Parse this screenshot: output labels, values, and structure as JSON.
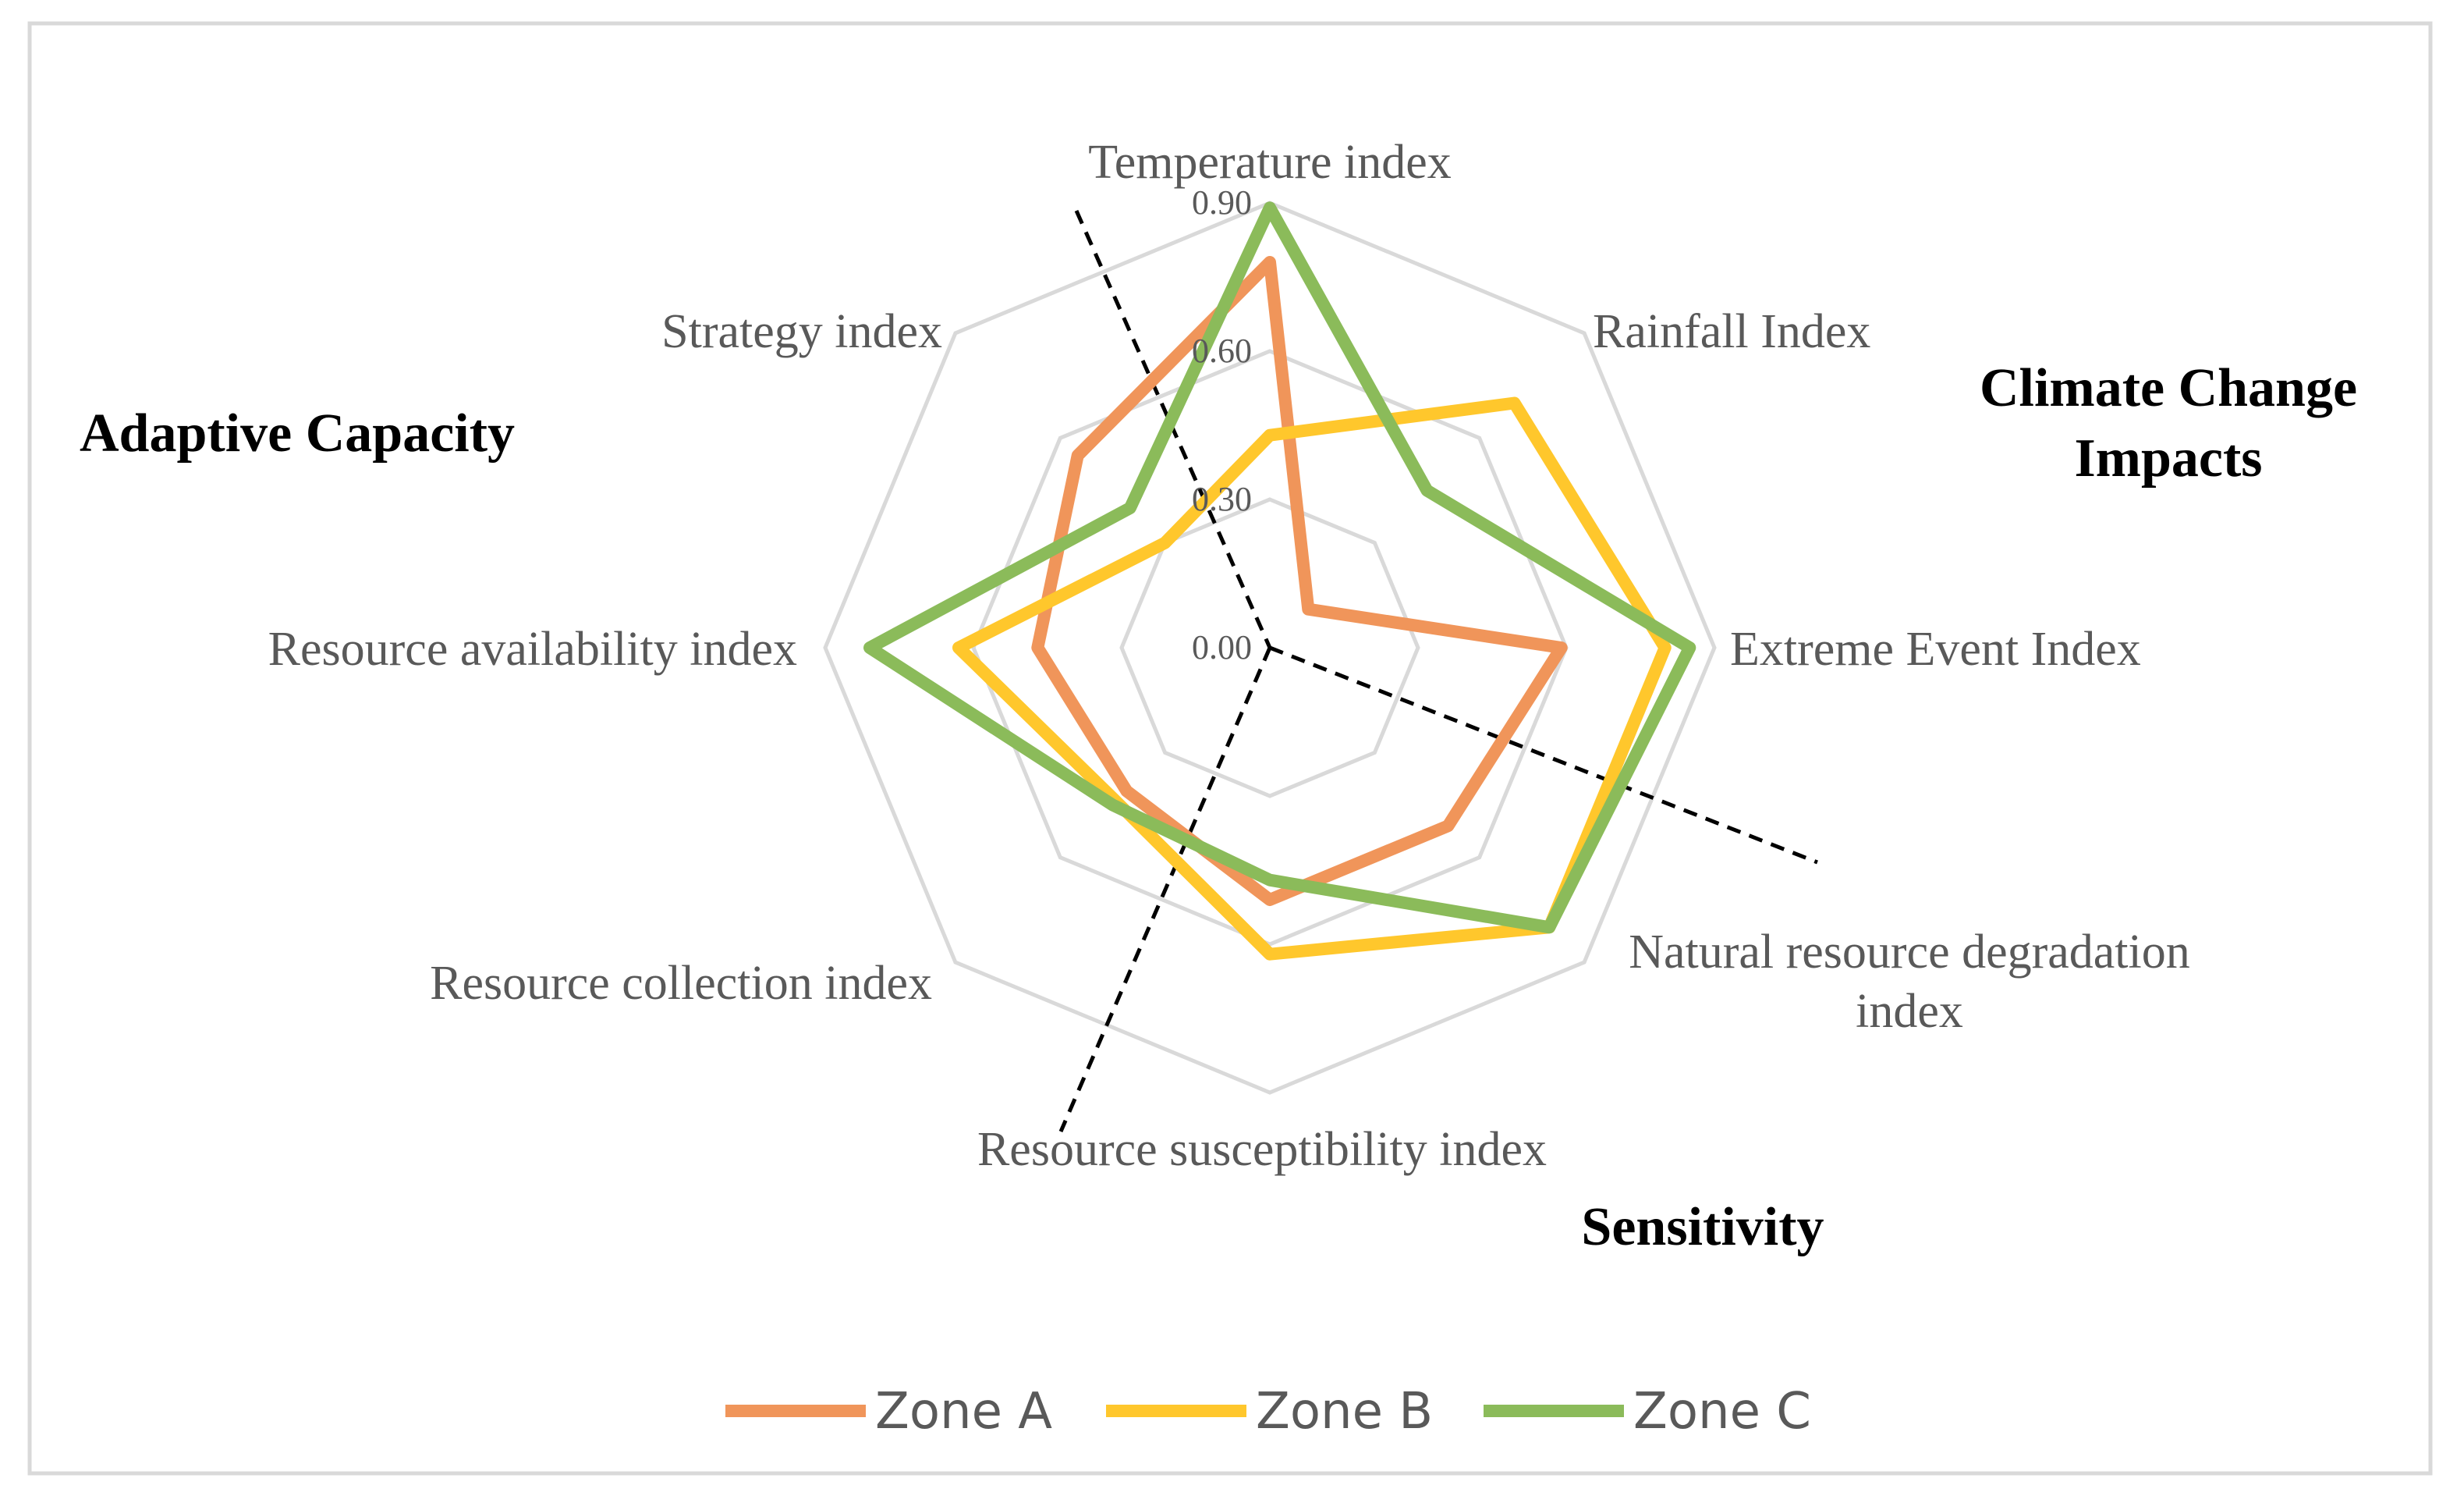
{
  "chart_data": {
    "type": "radar",
    "title": "",
    "axes": [
      "Temperature index",
      "Rainfall Index",
      "Extreme Event Index",
      "Natural resource degradation index",
      "Resource susceptibility index",
      "Resource collection index",
      "Resource availability index",
      "Strategy index"
    ],
    "axis_label_lines": [
      [
        "Temperature index"
      ],
      [
        "Rainfall Index"
      ],
      [
        "Extreme Event Index"
      ],
      [
        "Natural resource degradation",
        "index"
      ],
      [
        "Resource susceptibility index"
      ],
      [
        "Resource collection index"
      ],
      [
        "Resource availability index"
      ],
      [
        "Strategy index"
      ]
    ],
    "rlim": [
      0,
      0.9
    ],
    "ticks": [
      0.0,
      0.3,
      0.6,
      0.9
    ],
    "tick_labels": [
      "0.00",
      "0.30",
      "0.60",
      "0.90"
    ],
    "grid": true,
    "series": [
      {
        "name": "Zone A",
        "color": "#F0955A",
        "values": [
          0.78,
          0.11,
          0.59,
          0.51,
          0.51,
          0.41,
          0.47,
          0.55
        ]
      },
      {
        "name": "Zone B",
        "color": "#FFC72C",
        "values": [
          0.43,
          0.7,
          0.8,
          0.8,
          0.62,
          0.44,
          0.63,
          0.3
        ]
      },
      {
        "name": "Zone C",
        "color": "#8BBB5A",
        "values": [
          0.89,
          0.45,
          0.85,
          0.8,
          0.47,
          0.45,
          0.81,
          0.4
        ]
      }
    ],
    "group_labels": [
      {
        "id": "adaptive-capacity",
        "lines": [
          "Adaptive Capacity"
        ]
      },
      {
        "id": "climate-change-impacts",
        "lines": [
          "Climate Change",
          "Impacts"
        ]
      },
      {
        "id": "sensitivity",
        "lines": [
          "Sensitivity"
        ]
      }
    ],
    "legend": {
      "position": "bottom",
      "entries": [
        "Zone A",
        "Zone B",
        "Zone C"
      ]
    }
  }
}
